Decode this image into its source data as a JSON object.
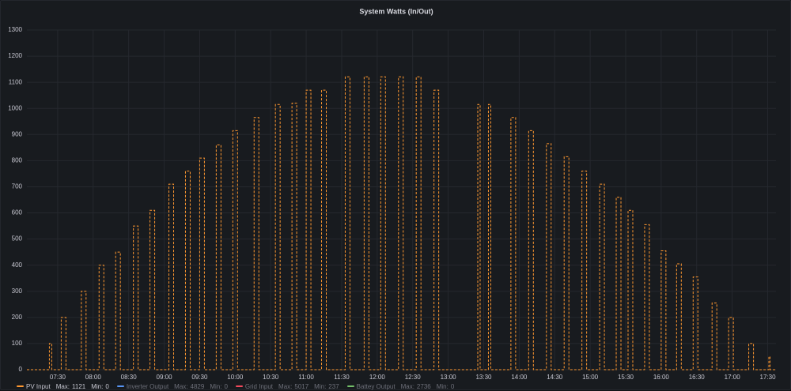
{
  "chart_data": {
    "type": "line",
    "title": "System Watts (In/Out)",
    "x": [
      "07:04",
      "07:23",
      "07:23",
      "07:25",
      "07:25",
      "07:33",
      "07:33",
      "07:37",
      "07:37",
      "07:50",
      "07:50",
      "07:54",
      "07:54",
      "08:05",
      "08:05",
      "08:09",
      "08:09",
      "08:19",
      "08:19",
      "08:23",
      "08:23",
      "08:34",
      "08:34",
      "08:38",
      "08:38",
      "08:48",
      "08:48",
      "08:52",
      "08:52",
      "09:04",
      "09:04",
      "09:08",
      "09:08",
      "09:18",
      "09:18",
      "09:22",
      "09:22",
      "09:30",
      "09:30",
      "09:34",
      "09:34",
      "09:44",
      "09:44",
      "09:48",
      "09:48",
      "09:58",
      "09:58",
      "10:02",
      "10:02",
      "10:16",
      "10:16",
      "10:20",
      "10:20",
      "10:34",
      "10:34",
      "10:38",
      "10:38",
      "10:48",
      "10:48",
      "10:52",
      "10:52",
      "11:00",
      "11:00",
      "11:04",
      "11:04",
      "11:13",
      "11:13",
      "11:17",
      "11:17",
      "11:33",
      "11:33",
      "11:37",
      "11:37",
      "11:49",
      "11:49",
      "11:53",
      "11:53",
      "12:03",
      "12:03",
      "12:07",
      "12:07",
      "12:18",
      "12:18",
      "12:22",
      "12:22",
      "12:33",
      "12:33",
      "12:37",
      "12:37",
      "12:48",
      "12:48",
      "12:52",
      "12:52",
      "13:25",
      "13:25",
      "13:27",
      "13:27",
      "13:34",
      "13:34",
      "13:36",
      "13:36",
      "13:53",
      "13:53",
      "13:57",
      "13:57",
      "14:08",
      "14:08",
      "14:12",
      "14:12",
      "14:23",
      "14:23",
      "14:27",
      "14:27",
      "14:38",
      "14:38",
      "14:42",
      "14:42",
      "14:53",
      "14:53",
      "14:57",
      "14:57",
      "15:08",
      "15:08",
      "15:12",
      "15:12",
      "15:22",
      "15:22",
      "15:26",
      "15:26",
      "15:32",
      "15:32",
      "15:36",
      "15:36",
      "15:46",
      "15:46",
      "15:50",
      "15:50",
      "16:00",
      "16:00",
      "16:04",
      "16:04",
      "16:13",
      "16:13",
      "16:17",
      "16:17",
      "16:27",
      "16:27",
      "16:31",
      "16:31",
      "16:43",
      "16:43",
      "16:47",
      "16:47",
      "16:57",
      "16:57",
      "17:01",
      "17:01",
      "17:14",
      "17:14",
      "17:18",
      "17:18",
      "17:31",
      "17:31",
      "17:32",
      "17:32",
      "17:37"
    ],
    "series": [
      {
        "name": "PV Input",
        "color": "#ff9830",
        "max": 1121,
        "min": 0,
        "hidden": false,
        "values": [
          0,
          0,
          100,
          100,
          0,
          0,
          200,
          200,
          0,
          0,
          300,
          300,
          0,
          0,
          400,
          400,
          0,
          0,
          450,
          450,
          0,
          0,
          550,
          550,
          0,
          0,
          610,
          610,
          0,
          0,
          710,
          710,
          0,
          0,
          760,
          760,
          0,
          0,
          810,
          810,
          0,
          0,
          860,
          860,
          0,
          0,
          915,
          915,
          0,
          0,
          965,
          965,
          0,
          0,
          1015,
          1015,
          0,
          0,
          1020,
          1020,
          0,
          0,
          1070,
          1070,
          0,
          0,
          1070,
          1070,
          0,
          0,
          1121,
          1121,
          0,
          0,
          1121,
          1121,
          0,
          0,
          1121,
          1121,
          0,
          0,
          1121,
          1121,
          0,
          0,
          1121,
          1121,
          0,
          0,
          1070,
          1070,
          0,
          0,
          1015,
          1015,
          0,
          0,
          1015,
          1015,
          0,
          0,
          965,
          965,
          0,
          0,
          915,
          915,
          0,
          0,
          865,
          865,
          0,
          0,
          815,
          815,
          0,
          0,
          760,
          760,
          0,
          0,
          710,
          710,
          0,
          0,
          660,
          660,
          0,
          0,
          610,
          610,
          0,
          0,
          555,
          555,
          0,
          0,
          455,
          455,
          0,
          0,
          405,
          405,
          0,
          0,
          355,
          355,
          0,
          0,
          255,
          255,
          0,
          0,
          200,
          200,
          0,
          0,
          100,
          100,
          0,
          0,
          50,
          50,
          0,
          0
        ]
      },
      {
        "name": "Inverter Output",
        "color": "#5794f2",
        "max": 4829,
        "min": 0,
        "hidden": true
      },
      {
        "name": "Grid Input",
        "color": "#f2495c",
        "max": 5017,
        "min": 237,
        "hidden": true
      },
      {
        "name": "Battey Output",
        "color": "#73bf69",
        "max": 2736,
        "min": 0,
        "hidden": true
      }
    ],
    "max_label": "Max:",
    "min_label": "Min:",
    "xlim": [
      "07:04",
      "17:37"
    ],
    "xticks": [
      "07:30",
      "08:00",
      "08:30",
      "09:00",
      "09:30",
      "10:00",
      "10:30",
      "11:00",
      "11:30",
      "12:00",
      "12:30",
      "13:00",
      "13:30",
      "14:00",
      "14:30",
      "15:00",
      "15:30",
      "16:00",
      "16:30",
      "17:00",
      "17:30"
    ],
    "ylim": [
      0,
      1300
    ],
    "yticks": [
      0,
      100,
      200,
      300,
      400,
      500,
      600,
      700,
      800,
      900,
      1000,
      1100,
      1200,
      1300
    ],
    "grid": true,
    "line_style": "dashed",
    "legend": "bottom"
  }
}
